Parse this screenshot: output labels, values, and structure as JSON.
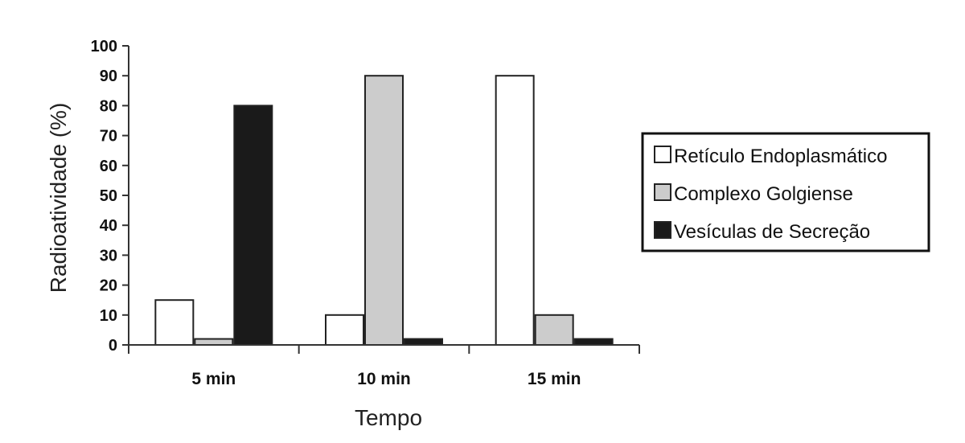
{
  "chart_data": {
    "type": "bar",
    "title": "",
    "xlabel": "Tempo",
    "ylabel": "Radioatividade (%)",
    "ylim": [
      0,
      100
    ],
    "yticks": [
      0,
      10,
      20,
      30,
      40,
      50,
      60,
      70,
      80,
      90,
      100
    ],
    "categories": [
      "5 min",
      "10 min",
      "15 min"
    ],
    "series": [
      {
        "name": "Retículo Endoplasmático",
        "color": "#ffffff",
        "values": [
          15,
          10,
          90
        ]
      },
      {
        "name": "Complexo Golgiense",
        "color": "#cccccc",
        "values": [
          2,
          90,
          10
        ]
      },
      {
        "name": "Vesículas de Secreção",
        "color": "#1a1a1a",
        "values": [
          80,
          2,
          2
        ]
      }
    ],
    "legend_position": "right",
    "grid": false
  }
}
